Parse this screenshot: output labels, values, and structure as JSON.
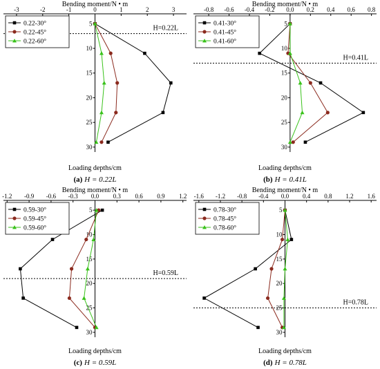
{
  "colors": {
    "30": "#000000",
    "45": "#8b2a1e",
    "60": "#39c21a"
  },
  "chart_data": [
    {
      "type": "line",
      "panel_tag": "(a)",
      "caption_var": "H",
      "caption_rest": " = 0.22L",
      "title": "Bending moment/N • m",
      "xlabel": "Loading depths/cm",
      "xlim": [
        -3.5,
        3.5
      ],
      "xticks": [
        "-3",
        "-2",
        "-1",
        "0",
        "1",
        "2",
        "3"
      ],
      "xtick_values": [
        -3,
        -2,
        -1,
        0,
        1,
        2,
        3
      ],
      "ylim": [
        3,
        31
      ],
      "yticks": [
        5,
        10,
        15,
        20,
        25,
        30
      ],
      "legend_position": "top-left",
      "h_line": {
        "depth": 7,
        "label": "H=0.22L"
      },
      "series": [
        {
          "name": "0.22-30°",
          "marker": "square",
          "x": [
            0,
            1.9,
            2.9,
            2.6,
            0.5
          ],
          "y": [
            5,
            11,
            17,
            23,
            29
          ]
        },
        {
          "name": "0.22-45°",
          "marker": "circle",
          "x": [
            0,
            0.6,
            0.85,
            0.8,
            0.25
          ],
          "y": [
            5,
            11,
            17,
            23,
            29
          ]
        },
        {
          "name": "0.22-60°",
          "marker": "triangle",
          "x": [
            0,
            0.25,
            0.35,
            0.25,
            0.05
          ],
          "y": [
            5,
            11,
            17,
            23,
            29
          ]
        }
      ]
    },
    {
      "type": "line",
      "panel_tag": "(b)",
      "caption_var": "H",
      "caption_rest": " = 0.41L",
      "title": "Bending moment/N • m",
      "xlabel": "Loading depths/cm",
      "xlim": [
        -0.95,
        0.85
      ],
      "xticks": [
        "-0.8",
        "-0.6",
        "-0.4",
        "-0.2",
        "0.0",
        "0.2",
        "0.4",
        "0.6",
        "0.8"
      ],
      "xtick_values": [
        -0.8,
        -0.6,
        -0.4,
        -0.2,
        0.0,
        0.2,
        0.4,
        0.6,
        0.8
      ],
      "ylim": [
        3,
        31
      ],
      "yticks": [
        5,
        10,
        15,
        20,
        25,
        30
      ],
      "legend_position": "top-left",
      "h_line": {
        "depth": 13,
        "label": "H=0.41L"
      },
      "series": [
        {
          "name": "0.41-30°",
          "marker": "square",
          "x": [
            0,
            -0.3,
            0.3,
            0.72,
            0.15
          ],
          "y": [
            5,
            11,
            17,
            23,
            29
          ]
        },
        {
          "name": "0.41-45°",
          "marker": "circle",
          "x": [
            0,
            -0.02,
            0.2,
            0.37,
            0.03
          ],
          "y": [
            5,
            11,
            17,
            23,
            29
          ]
        },
        {
          "name": "0.41-60°",
          "marker": "triangle",
          "x": [
            0,
            0.0,
            0.1,
            0.12,
            0.0
          ],
          "y": [
            5,
            11,
            17,
            23,
            29
          ]
        }
      ]
    },
    {
      "type": "line",
      "panel_tag": "(c)",
      "caption_var": "H",
      "caption_rest": " = 0.59L",
      "title": "Bending moment/N • m",
      "xlabel": "Loading depths/cm",
      "xlim": [
        -1.25,
        1.25
      ],
      "xticks": [
        "-1.2",
        "-0.9",
        "-0.6",
        "-0.3",
        "0.0",
        "0.3",
        "0.6",
        "0.9",
        "1.2"
      ],
      "xtick_values": [
        -1.2,
        -0.9,
        -0.6,
        -0.3,
        0.0,
        0.3,
        0.6,
        0.9,
        1.2
      ],
      "ylim": [
        3,
        31
      ],
      "yticks": [
        5,
        10,
        15,
        20,
        25,
        30
      ],
      "legend_position": "top-left",
      "h_line": {
        "depth": 19,
        "label": "H=0.59L"
      },
      "series": [
        {
          "name": "0.59-30°",
          "marker": "square",
          "x": [
            0.1,
            -0.58,
            -1.02,
            -0.98,
            -0.25
          ],
          "y": [
            5,
            11,
            17,
            23,
            29
          ]
        },
        {
          "name": "0.59-45°",
          "marker": "circle",
          "x": [
            0.05,
            -0.12,
            -0.32,
            -0.35,
            0.0
          ],
          "y": [
            5,
            11,
            17,
            23,
            29
          ]
        },
        {
          "name": "0.59-60°",
          "marker": "triangle",
          "x": [
            0.02,
            -0.02,
            -0.1,
            -0.15,
            0.02
          ],
          "y": [
            5,
            11,
            17,
            23,
            29
          ]
        }
      ]
    },
    {
      "type": "line",
      "panel_tag": "(d)",
      "caption_var": "H",
      "caption_rest": " = 0.78L",
      "title": "Bending moment/N • m",
      "xlabel": "Loading depths/cm",
      "xlim": [
        -1.7,
        1.7
      ],
      "xticks": [
        "-1.6",
        "-1.2",
        "-0.8",
        "-0.4",
        "0.0",
        "0.4",
        "0.8",
        "1.2",
        "1.6"
      ],
      "xtick_values": [
        -1.6,
        -1.2,
        -0.8,
        -0.4,
        0.0,
        0.4,
        0.8,
        1.2,
        1.6
      ],
      "ylim": [
        3,
        31
      ],
      "yticks": [
        5,
        10,
        15,
        20,
        25,
        30
      ],
      "legend_position": "top-left",
      "h_line": {
        "depth": 25,
        "label": "H=0.78L"
      },
      "series": [
        {
          "name": "0.78-30°",
          "marker": "square",
          "x": [
            0.0,
            0.12,
            -0.55,
            -1.5,
            -0.5
          ],
          "y": [
            5,
            11,
            17,
            23,
            29
          ]
        },
        {
          "name": "0.78-45°",
          "marker": "circle",
          "x": [
            0.0,
            -0.05,
            -0.25,
            -0.32,
            -0.05
          ],
          "y": [
            5,
            11,
            17,
            23,
            29
          ]
        },
        {
          "name": "0.78-60°",
          "marker": "triangle",
          "x": [
            0.0,
            0.05,
            0.0,
            -0.02,
            -0.02
          ],
          "y": [
            5,
            11,
            17,
            23,
            29
          ]
        }
      ]
    }
  ]
}
